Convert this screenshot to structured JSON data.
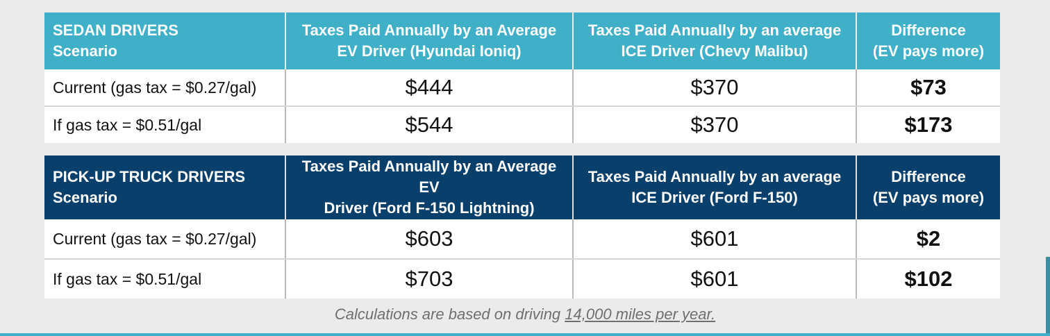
{
  "sedan": {
    "headers": [
      "SEDAN DRIVERS\nScenario",
      "Taxes Paid Annually by an Average EV Driver (Hyundai Ioniq)",
      "Taxes Paid Annually by an average ICE Driver (Chevy Malibu)",
      "Difference (EV pays more)"
    ],
    "header_lines": {
      "h0a": "SEDAN DRIVERS",
      "h0b": "Scenario",
      "h1a": "Taxes Paid Annually by an Average",
      "h1b": "EV Driver (Hyundai Ioniq)",
      "h2a": "Taxes Paid Annually by an average",
      "h2b": "ICE Driver (Chevy Malibu)",
      "h3a": "Difference",
      "h3b": "(EV pays more)"
    },
    "rows": [
      {
        "scenario": "Current (gas tax = $0.27/gal)",
        "ev": "$444",
        "ice": "$370",
        "diff": "$73"
      },
      {
        "scenario": "If gas tax = $0.51/gal",
        "ev": "$544",
        "ice": "$370",
        "diff": "$173"
      }
    ]
  },
  "truck": {
    "header_lines": {
      "h0a": "PICK-UP TRUCK DRIVERS",
      "h0b": "Scenario",
      "h1a": "Taxes Paid Annually by an Average EV",
      "h1b": "Driver (Ford F-150 Lightning)",
      "h2a": "Taxes Paid Annually by an average",
      "h2b": "ICE Driver (Ford F-150)",
      "h3a": "Difference",
      "h3b": "(EV pays more)"
    },
    "rows": [
      {
        "scenario": "Current (gas tax = $0.27/gal)",
        "ev": "$603",
        "ice": "$601",
        "diff": "$2"
      },
      {
        "scenario": "If gas tax = $0.51/gal",
        "ev": "$703",
        "ice": "$601",
        "diff": "$102"
      }
    ]
  },
  "footnote": {
    "prefix": "Calculations are based on driving ",
    "underlined": "14,000 miles per year."
  },
  "colors": {
    "sedan_header": "#3fb0c7",
    "truck_header": "#083f6b",
    "background": "#ebebeb"
  }
}
